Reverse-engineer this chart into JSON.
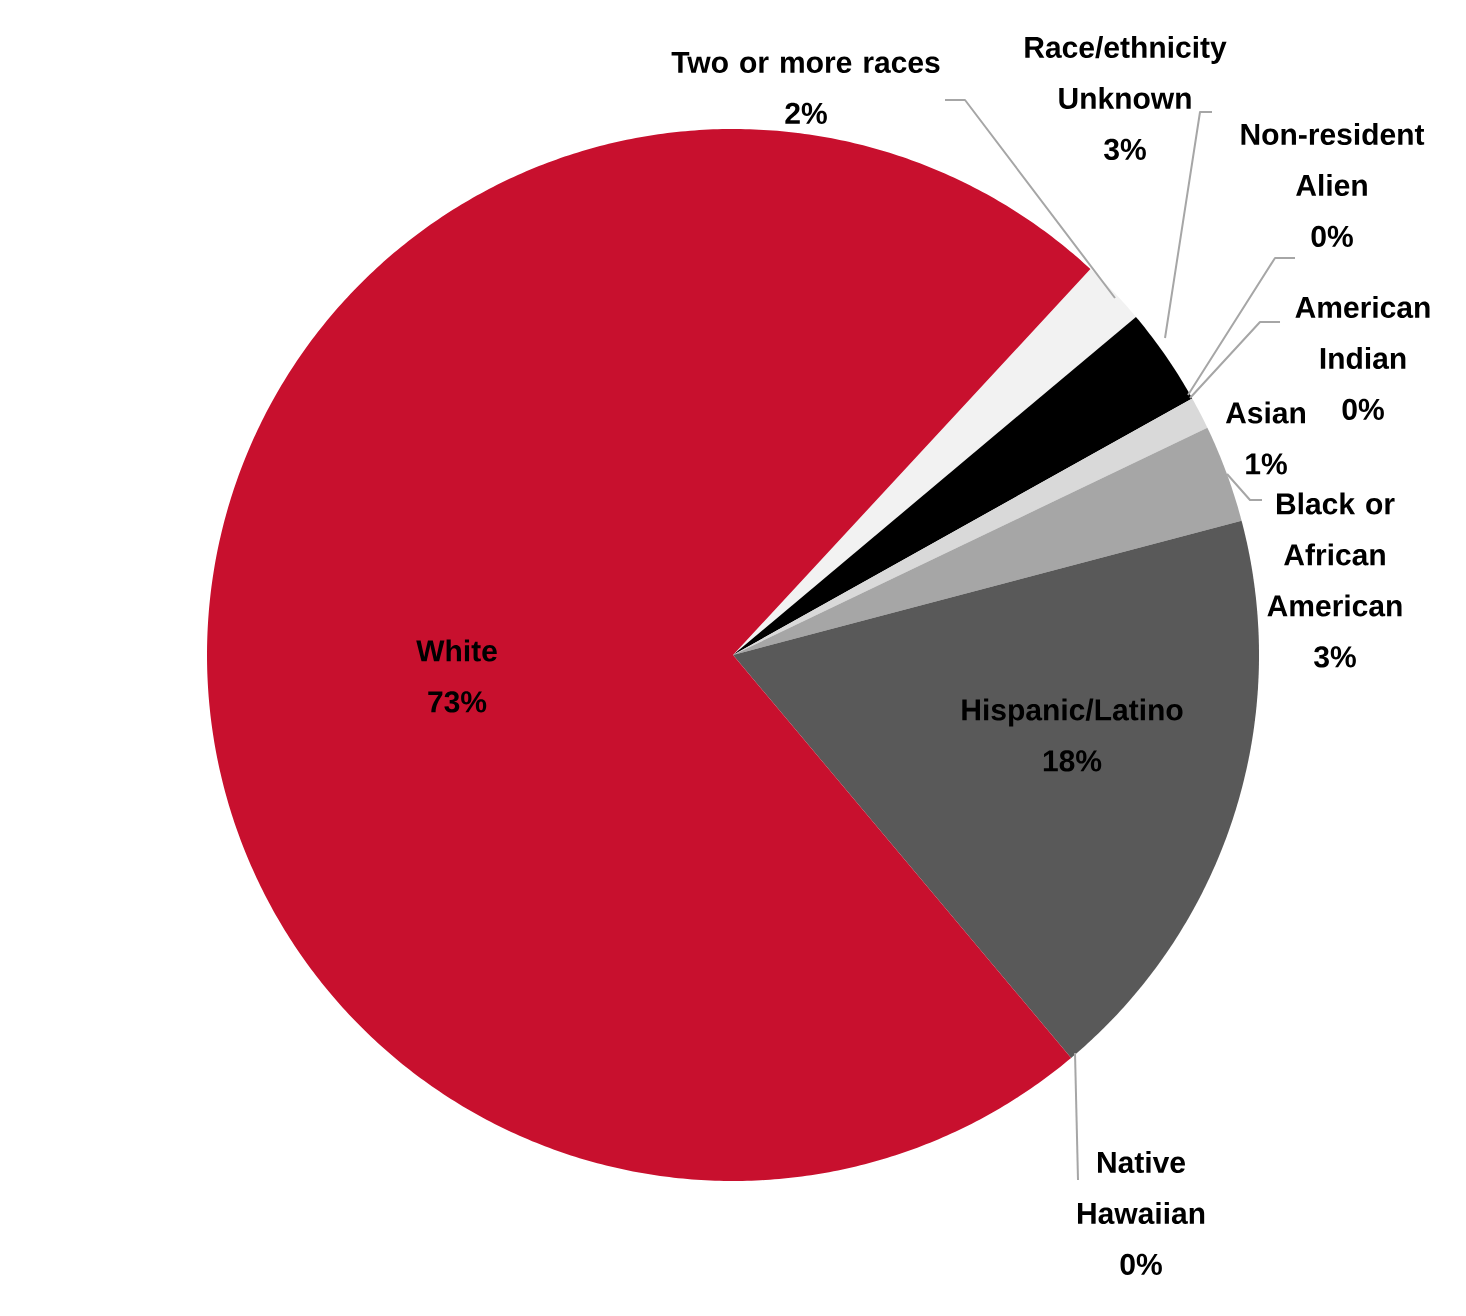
{
  "chart_data": {
    "type": "pie",
    "categories": [
      "Two or more races",
      "Race/ethnicity Unknown",
      "Non-resident Alien",
      "American Indian",
      "Asian",
      "Black or African American",
      "Hispanic/Latino",
      "Native Hawaiian",
      "White"
    ],
    "values": [
      2,
      3,
      0,
      0,
      1,
      3,
      18,
      0,
      73
    ],
    "value_labels": [
      "2%",
      "3%",
      "0%",
      "0%",
      "1%",
      "3%",
      "18%",
      "0%",
      "73%"
    ],
    "colors": [
      "#f2f2f2",
      "#000000",
      "#4472c4",
      "#ffffff",
      "#d9d9d9",
      "#a6a6a6",
      "#595959",
      "#7f7f7f",
      "#c8102e"
    ]
  }
}
